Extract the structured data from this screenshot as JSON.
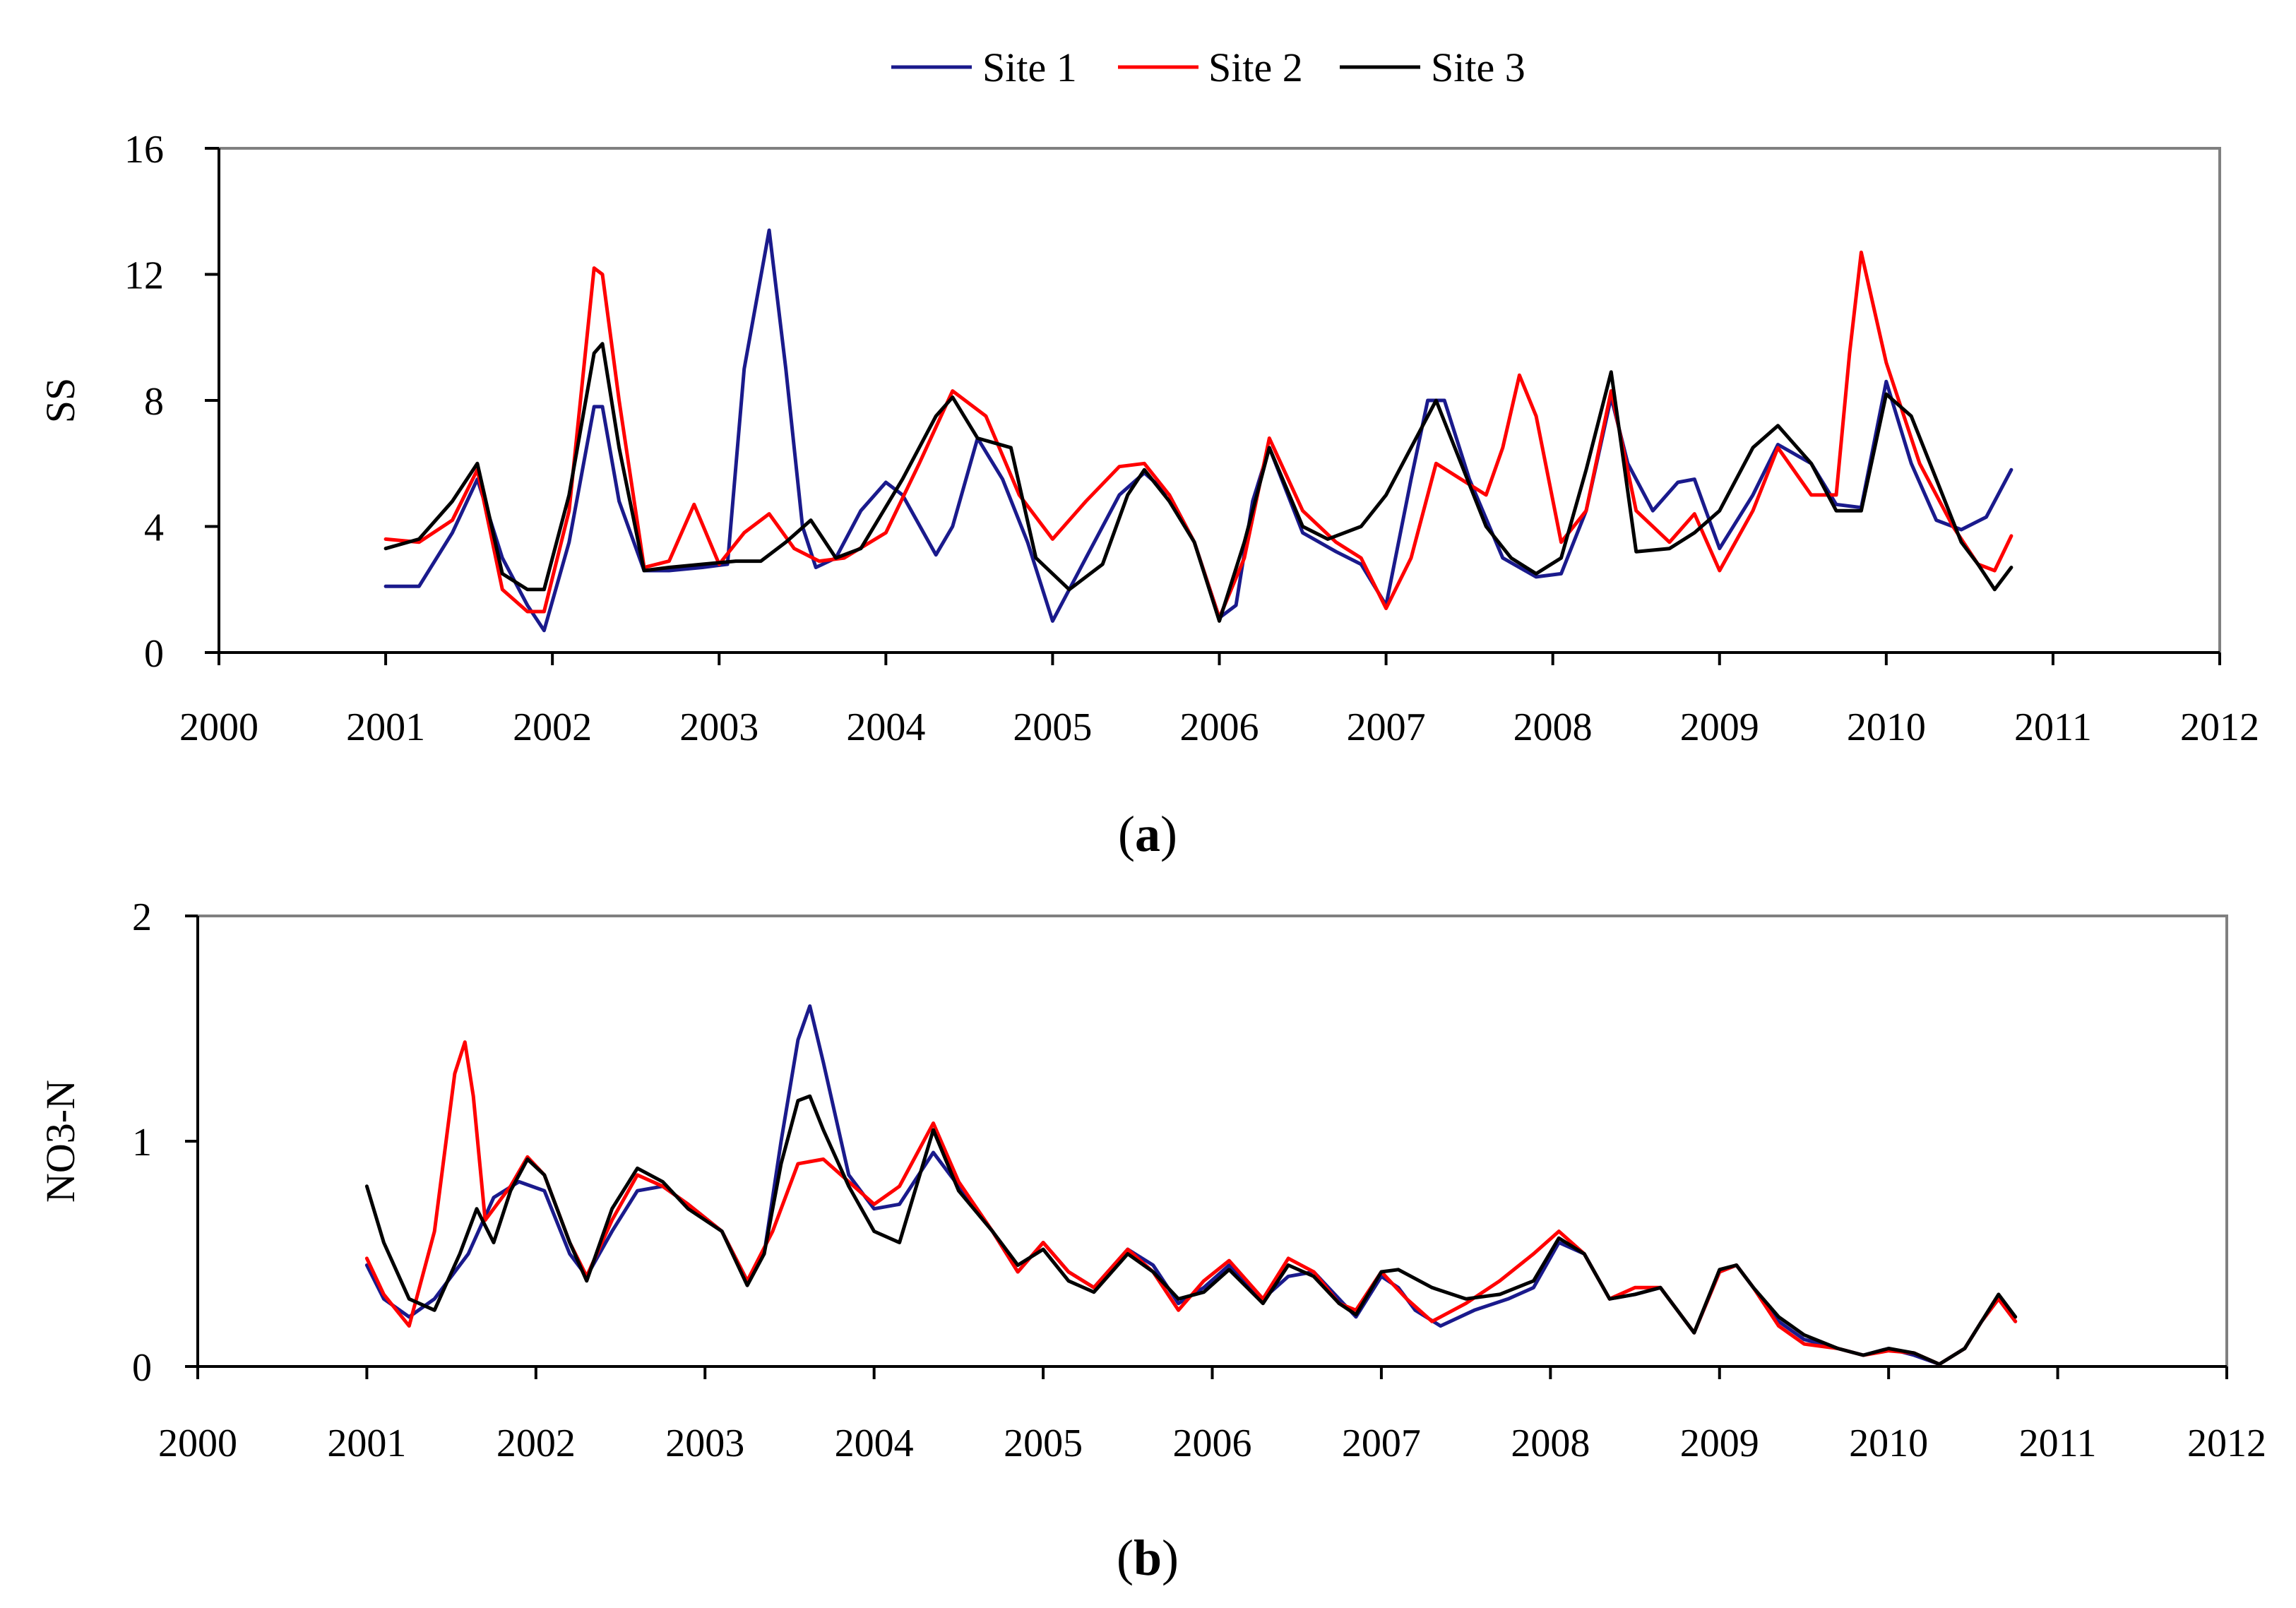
{
  "legend": [
    {
      "name": "Site 1",
      "color": "#1a1a8c"
    },
    {
      "name": "Site 2",
      "color": "#ff0000"
    },
    {
      "name": "Site 3",
      "color": "#000000"
    }
  ],
  "chart_data": [
    {
      "type": "line",
      "panel_label": "a",
      "ylabel": "SS",
      "xlabel": "",
      "xlim": [
        2000,
        2012
      ],
      "ylim": [
        0,
        16
      ],
      "xticks": [
        2000,
        2001,
        2002,
        2003,
        2004,
        2005,
        2006,
        2007,
        2008,
        2009,
        2010,
        2011,
        2012
      ],
      "yticks": [
        0,
        4,
        8,
        12,
        16
      ],
      "grid": false,
      "legend_position": "top-center",
      "series": [
        {
          "name": "Site 1",
          "color": "#1a1a8c",
          "x": [
            2001,
            2001.2,
            2001.4,
            2001.55,
            2001.7,
            2001.85,
            2001.95,
            2002.1,
            2002.25,
            2002.3,
            2002.4,
            2002.55,
            2002.7,
            2002.9,
            2003.05,
            2003.15,
            2003.3,
            2003.4,
            2003.5,
            2003.58,
            2003.7,
            2003.85,
            2004,
            2004.1,
            2004.3,
            2004.4,
            2004.55,
            2004.7,
            2004.85,
            2005,
            2005.2,
            2005.4,
            2005.55,
            2005.7,
            2005.85,
            2006,
            2006.1,
            2006.2,
            2006.3,
            2006.5,
            2006.7,
            2006.85,
            2007,
            2007.15,
            2007.25,
            2007.35,
            2007.5,
            2007.7,
            2007.9,
            2008.05,
            2008.2,
            2008.35,
            2008.45,
            2008.6,
            2008.75,
            2008.85,
            2009,
            2009.2,
            2009.35,
            2009.55,
            2009.7,
            2009.85,
            2010.0,
            2010.15,
            2010.3,
            2010.45,
            2010.6,
            2010.75
          ],
          "values": [
            2.1,
            2.1,
            3.8,
            5.5,
            3.0,
            1.5,
            0.7,
            3.5,
            7.8,
            7.8,
            4.8,
            2.6,
            2.6,
            2.7,
            2.8,
            9.0,
            13.4,
            9.0,
            4.0,
            2.7,
            3.0,
            4.5,
            5.4,
            5.0,
            3.1,
            4.0,
            6.8,
            5.5,
            3.5,
            1.0,
            3.0,
            5.0,
            5.7,
            5.0,
            3.5,
            1.1,
            1.5,
            4.8,
            6.5,
            3.8,
            3.2,
            2.8,
            1.5,
            5.5,
            8.0,
            8.0,
            5.5,
            3.0,
            2.4,
            2.5,
            4.5,
            8.1,
            6.0,
            4.5,
            5.4,
            5.5,
            3.3,
            5.0,
            6.6,
            6.0,
            4.7,
            4.6,
            8.6,
            6.0,
            4.2,
            3.9,
            4.3,
            5.8
          ]
        },
        {
          "name": "Site 2",
          "color": "#ff0000",
          "x": [
            2001,
            2001.2,
            2001.4,
            2001.55,
            2001.7,
            2001.85,
            2001.95,
            2002.1,
            2002.25,
            2002.3,
            2002.4,
            2002.55,
            2002.7,
            2002.85,
            2003,
            2003.15,
            2003.3,
            2003.45,
            2003.6,
            2003.75,
            2004,
            2004.2,
            2004.4,
            2004.6,
            2004.8,
            2005,
            2005.2,
            2005.4,
            2005.55,
            2005.7,
            2005.85,
            2006,
            2006.15,
            2006.3,
            2006.5,
            2006.7,
            2006.85,
            2007,
            2007.15,
            2007.3,
            2007.45,
            2007.6,
            2007.7,
            2007.8,
            2007.9,
            2008.05,
            2008.2,
            2008.35,
            2008.5,
            2008.7,
            2008.85,
            2009,
            2009.2,
            2009.35,
            2009.55,
            2009.7,
            2009.78,
            2009.85,
            2010,
            2010.2,
            2010.4,
            2010.55,
            2010.65,
            2010.75
          ],
          "values": [
            3.6,
            3.5,
            4.2,
            5.8,
            2.0,
            1.3,
            1.3,
            4.5,
            12.2,
            12.0,
            8.0,
            2.7,
            2.9,
            4.7,
            2.8,
            3.8,
            4.4,
            3.3,
            2.9,
            3.0,
            3.8,
            6.0,
            8.3,
            7.5,
            5.0,
            3.6,
            4.8,
            5.9,
            6.0,
            5.0,
            3.5,
            1.1,
            3.0,
            6.8,
            4.5,
            3.5,
            3.0,
            1.4,
            3.0,
            6.0,
            5.5,
            5.0,
            6.5,
            8.8,
            7.5,
            3.5,
            4.5,
            8.3,
            4.5,
            3.5,
            4.4,
            2.6,
            4.5,
            6.5,
            5.0,
            5.0,
            9.5,
            12.7,
            9.2,
            6.0,
            4.0,
            2.8,
            2.6,
            3.7
          ]
        },
        {
          "name": "Site 3",
          "color": "#000000",
          "x": [
            2001,
            2001.2,
            2001.4,
            2001.55,
            2001.7,
            2001.85,
            2001.95,
            2002.1,
            2002.25,
            2002.3,
            2002.4,
            2002.55,
            2002.7,
            2002.9,
            2003.1,
            2003.25,
            2003.4,
            2003.55,
            2003.7,
            2003.85,
            2004.1,
            2004.3,
            2004.4,
            2004.55,
            2004.75,
            2004.9,
            2005.1,
            2005.3,
            2005.45,
            2005.55,
            2005.7,
            2005.85,
            2006,
            2006.15,
            2006.3,
            2006.5,
            2006.65,
            2006.85,
            2007,
            2007.15,
            2007.3,
            2007.45,
            2007.6,
            2007.75,
            2007.9,
            2008.05,
            2008.2,
            2008.35,
            2008.5,
            2008.7,
            2008.85,
            2009,
            2009.2,
            2009.35,
            2009.55,
            2009.7,
            2009.85,
            2010,
            2010.15,
            2010.3,
            2010.45,
            2010.55,
            2010.65,
            2010.75
          ],
          "values": [
            3.3,
            3.6,
            4.8,
            6.0,
            2.5,
            2.0,
            2.0,
            5.0,
            9.5,
            9.8,
            6.5,
            2.6,
            2.7,
            2.8,
            2.9,
            2.9,
            3.5,
            4.2,
            3.0,
            3.3,
            5.5,
            7.5,
            8.1,
            6.8,
            6.5,
            3.0,
            2.0,
            2.8,
            5.0,
            5.8,
            4.8,
            3.5,
            1.0,
            3.5,
            6.5,
            4.0,
            3.6,
            4.0,
            5.0,
            6.5,
            8.0,
            6.0,
            4.0,
            3.0,
            2.5,
            3.0,
            5.8,
            8.9,
            3.2,
            3.3,
            3.8,
            4.5,
            6.5,
            7.2,
            6.0,
            4.5,
            4.5,
            8.2,
            7.5,
            5.5,
            3.5,
            2.8,
            2.0,
            2.7
          ]
        }
      ]
    },
    {
      "type": "line",
      "panel_label": "b",
      "ylabel": "NO3-N",
      "xlabel": "",
      "xlim": [
        2000,
        2012
      ],
      "ylim": [
        0,
        2
      ],
      "xticks": [
        2000,
        2001,
        2002,
        2003,
        2004,
        2005,
        2006,
        2007,
        2008,
        2009,
        2010,
        2011,
        2012
      ],
      "yticks": [
        0,
        1,
        2
      ],
      "grid": false,
      "series": [
        {
          "name": "Site 1",
          "color": "#1a1a8c",
          "x": [
            2001,
            2001.1,
            2001.25,
            2001.4,
            2001.6,
            2001.75,
            2001.9,
            2002.05,
            2002.2,
            2002.3,
            2002.45,
            2002.6,
            2002.75,
            2002.9,
            2003.1,
            2003.25,
            2003.35,
            2003.45,
            2003.55,
            2003.62,
            2003.7,
            2003.85,
            2004,
            2004.15,
            2004.35,
            2004.5,
            2004.7,
            2004.85,
            2005,
            2005.15,
            2005.3,
            2005.5,
            2005.65,
            2005.8,
            2005.95,
            2006.1,
            2006.3,
            2006.45,
            2006.6,
            2006.75,
            2006.85,
            2007,
            2007.1,
            2007.2,
            2007.35,
            2007.55,
            2007.75,
            2007.9,
            2008.05,
            2008.2,
            2008.35,
            2008.5,
            2008.65,
            2008.85,
            2009,
            2009.1,
            2009.2,
            2009.35,
            2009.5,
            2009.7,
            2009.85,
            2010,
            2010.15,
            2010.3,
            2010.45,
            2010.55,
            2010.65,
            2010.75
          ],
          "values": [
            0.45,
            0.3,
            0.22,
            0.3,
            0.5,
            0.75,
            0.82,
            0.78,
            0.5,
            0.4,
            0.6,
            0.78,
            0.8,
            0.72,
            0.6,
            0.38,
            0.5,
            1.0,
            1.45,
            1.6,
            1.35,
            0.85,
            0.7,
            0.72,
            0.95,
            0.8,
            0.6,
            0.42,
            0.55,
            0.42,
            0.35,
            0.52,
            0.45,
            0.28,
            0.35,
            0.45,
            0.3,
            0.4,
            0.42,
            0.3,
            0.22,
            0.4,
            0.35,
            0.25,
            0.18,
            0.25,
            0.3,
            0.35,
            0.55,
            0.5,
            0.3,
            0.32,
            0.35,
            0.15,
            0.42,
            0.45,
            0.35,
            0.2,
            0.12,
            0.08,
            0.05,
            0.08,
            0.05,
            0.01,
            0.08,
            0.2,
            0.3,
            0.2
          ]
        },
        {
          "name": "Site 2",
          "color": "#ff0000",
          "x": [
            2001,
            2001.1,
            2001.25,
            2001.4,
            2001.52,
            2001.58,
            2001.63,
            2001.7,
            2001.85,
            2001.95,
            2002.05,
            2002.2,
            2002.3,
            2002.45,
            2002.6,
            2002.75,
            2002.9,
            2003.1,
            2003.25,
            2003.4,
            2003.55,
            2003.7,
            2003.85,
            2004,
            2004.15,
            2004.35,
            2004.5,
            2004.7,
            2004.85,
            2005,
            2005.15,
            2005.3,
            2005.5,
            2005.65,
            2005.8,
            2005.95,
            2006.1,
            2006.3,
            2006.45,
            2006.6,
            2006.75,
            2006.85,
            2007,
            2007.15,
            2007.3,
            2007.5,
            2007.7,
            2007.9,
            2008.05,
            2008.2,
            2008.35,
            2008.5,
            2008.65,
            2008.85,
            2009,
            2009.1,
            2009.2,
            2009.35,
            2009.5,
            2009.7,
            2009.85,
            2010,
            2010.15,
            2010.3,
            2010.45,
            2010.55,
            2010.65,
            2010.75
          ],
          "values": [
            0.48,
            0.32,
            0.18,
            0.6,
            1.3,
            1.44,
            1.2,
            0.65,
            0.8,
            0.93,
            0.85,
            0.55,
            0.4,
            0.65,
            0.85,
            0.8,
            0.72,
            0.6,
            0.38,
            0.6,
            0.9,
            0.92,
            0.82,
            0.72,
            0.8,
            1.08,
            0.82,
            0.6,
            0.42,
            0.55,
            0.42,
            0.35,
            0.52,
            0.42,
            0.25,
            0.38,
            0.47,
            0.3,
            0.48,
            0.42,
            0.28,
            0.25,
            0.42,
            0.3,
            0.2,
            0.28,
            0.38,
            0.5,
            0.6,
            0.5,
            0.3,
            0.35,
            0.35,
            0.15,
            0.42,
            0.45,
            0.35,
            0.18,
            0.1,
            0.08,
            0.05,
            0.07,
            0.06,
            0.01,
            0.08,
            0.2,
            0.3,
            0.2
          ]
        },
        {
          "name": "Site 3",
          "color": "#000000",
          "x": [
            2001,
            2001.1,
            2001.25,
            2001.4,
            2001.55,
            2001.65,
            2001.75,
            2001.85,
            2001.95,
            2002.05,
            2002.2,
            2002.3,
            2002.45,
            2002.6,
            2002.75,
            2002.9,
            2003.1,
            2003.25,
            2003.35,
            2003.45,
            2003.55,
            2003.62,
            2003.7,
            2003.85,
            2004,
            2004.15,
            2004.35,
            2004.5,
            2004.7,
            2004.85,
            2005,
            2005.15,
            2005.3,
            2005.5,
            2005.65,
            2005.8,
            2005.95,
            2006.1,
            2006.3,
            2006.45,
            2006.6,
            2006.75,
            2006.85,
            2007,
            2007.1,
            2007.3,
            2007.5,
            2007.7,
            2007.9,
            2008.05,
            2008.2,
            2008.35,
            2008.5,
            2008.65,
            2008.85,
            2009,
            2009.1,
            2009.2,
            2009.35,
            2009.5,
            2009.7,
            2009.85,
            2010,
            2010.15,
            2010.3,
            2010.45,
            2010.55,
            2010.65,
            2010.75
          ],
          "values": [
            0.8,
            0.55,
            0.3,
            0.25,
            0.5,
            0.7,
            0.55,
            0.78,
            0.92,
            0.85,
            0.55,
            0.38,
            0.7,
            0.88,
            0.82,
            0.7,
            0.6,
            0.36,
            0.5,
            0.9,
            1.18,
            1.2,
            1.05,
            0.8,
            0.6,
            0.55,
            1.05,
            0.78,
            0.6,
            0.45,
            0.52,
            0.38,
            0.33,
            0.5,
            0.42,
            0.3,
            0.33,
            0.43,
            0.28,
            0.45,
            0.4,
            0.28,
            0.23,
            0.42,
            0.43,
            0.35,
            0.3,
            0.32,
            0.38,
            0.57,
            0.5,
            0.3,
            0.32,
            0.35,
            0.15,
            0.43,
            0.45,
            0.35,
            0.22,
            0.14,
            0.08,
            0.05,
            0.08,
            0.06,
            0.01,
            0.08,
            0.2,
            0.32,
            0.22
          ]
        }
      ]
    }
  ]
}
